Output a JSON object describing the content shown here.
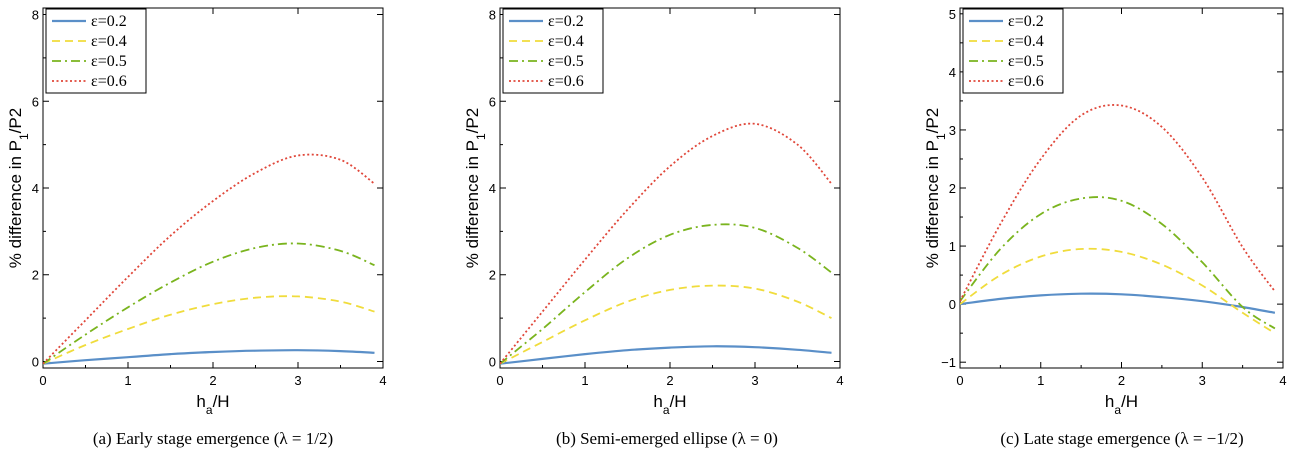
{
  "chart_data": [
    {
      "type": "line",
      "caption": "(a)  Early stage emergence (λ = 1/2)",
      "xlabel": "h_a/H",
      "ylabel": "% difference in P_1/P_2",
      "xlim": [
        0,
        4
      ],
      "ylim": [
        -0.15,
        8.15
      ],
      "xticks": [
        0,
        1,
        2,
        3,
        4
      ],
      "yticks": [
        0,
        2,
        4,
        6,
        8
      ],
      "x": [
        0,
        0.5,
        1,
        1.5,
        2,
        2.5,
        3,
        3.5,
        3.9
      ],
      "legend_position": "top-left",
      "series": [
        {
          "name": "ε=0.2",
          "color": "#5a8fc8",
          "dash": "solid",
          "values": [
            -0.05,
            0.03,
            0.1,
            0.17,
            0.22,
            0.25,
            0.26,
            0.24,
            0.2
          ]
        },
        {
          "name": "ε=0.4",
          "color": "#f0dc3c",
          "dash": "dashed",
          "values": [
            -0.05,
            0.38,
            0.75,
            1.08,
            1.32,
            1.47,
            1.5,
            1.38,
            1.15
          ]
        },
        {
          "name": "ε=0.5",
          "color": "#7ab41e",
          "dash": "dashdot",
          "values": [
            -0.05,
            0.62,
            1.25,
            1.82,
            2.3,
            2.62,
            2.72,
            2.55,
            2.22
          ]
        },
        {
          "name": "ε=0.6",
          "color": "#e0473a",
          "dash": "dotted",
          "values": [
            -0.05,
            0.95,
            1.95,
            2.9,
            3.7,
            4.35,
            4.75,
            4.65,
            4.1
          ]
        }
      ]
    },
    {
      "type": "line",
      "caption": "(b)  Semi-emerged ellipse (λ = 0)",
      "xlabel": "h_a/H",
      "ylabel": "% difference in P_1/P_2",
      "xlim": [
        0,
        4
      ],
      "ylim": [
        -0.15,
        8.15
      ],
      "xticks": [
        0,
        1,
        2,
        3,
        4
      ],
      "yticks": [
        0,
        2,
        4,
        6,
        8
      ],
      "x": [
        0,
        0.5,
        1,
        1.5,
        2,
        2.5,
        3,
        3.5,
        3.9
      ],
      "legend_position": "top-left",
      "series": [
        {
          "name": "ε=0.2",
          "color": "#5a8fc8",
          "dash": "solid",
          "values": [
            -0.05,
            0.06,
            0.17,
            0.26,
            0.32,
            0.35,
            0.33,
            0.27,
            0.2
          ]
        },
        {
          "name": "ε=0.4",
          "color": "#f0dc3c",
          "dash": "dashed",
          "values": [
            -0.05,
            0.45,
            0.95,
            1.38,
            1.65,
            1.75,
            1.68,
            1.38,
            1.0
          ]
        },
        {
          "name": "ε=0.5",
          "color": "#7ab41e",
          "dash": "dashdot",
          "values": [
            -0.05,
            0.75,
            1.6,
            2.38,
            2.92,
            3.15,
            3.08,
            2.62,
            2.05
          ]
        },
        {
          "name": "ε=0.6",
          "color": "#e0473a",
          "dash": "dotted",
          "values": [
            -0.05,
            1.15,
            2.35,
            3.5,
            4.5,
            5.2,
            5.48,
            5.0,
            4.1
          ]
        }
      ]
    },
    {
      "type": "line",
      "caption": "(c)  Late stage emergence (λ = −1/2)",
      "xlabel": "h_a/H",
      "ylabel": "% difference in P_1/P_2",
      "xlim": [
        0,
        4
      ],
      "ylim": [
        -1.1,
        5.1
      ],
      "xticks": [
        0,
        1,
        2,
        3,
        4
      ],
      "yticks": [
        -1,
        0,
        1,
        2,
        3,
        4,
        5
      ],
      "x": [
        0,
        0.5,
        1,
        1.5,
        2,
        2.5,
        3,
        3.5,
        3.9
      ],
      "legend_position": "top-left",
      "series": [
        {
          "name": "ε=0.2",
          "color": "#5a8fc8",
          "dash": "solid",
          "values": [
            0.0,
            0.09,
            0.15,
            0.18,
            0.17,
            0.12,
            0.05,
            -0.05,
            -0.15
          ]
        },
        {
          "name": "ε=0.4",
          "color": "#f0dc3c",
          "dash": "dashed",
          "values": [
            0.0,
            0.5,
            0.82,
            0.95,
            0.9,
            0.68,
            0.32,
            -0.15,
            -0.5
          ]
        },
        {
          "name": "ε=0.5",
          "color": "#7ab41e",
          "dash": "dashdot",
          "values": [
            0.05,
            0.95,
            1.55,
            1.82,
            1.78,
            1.38,
            0.72,
            -0.05,
            -0.42
          ]
        },
        {
          "name": "ε=0.6",
          "color": "#e0473a",
          "dash": "dotted",
          "values": [
            0.05,
            1.38,
            2.5,
            3.25,
            3.42,
            3.05,
            2.18,
            0.98,
            0.22
          ]
        }
      ]
    }
  ]
}
